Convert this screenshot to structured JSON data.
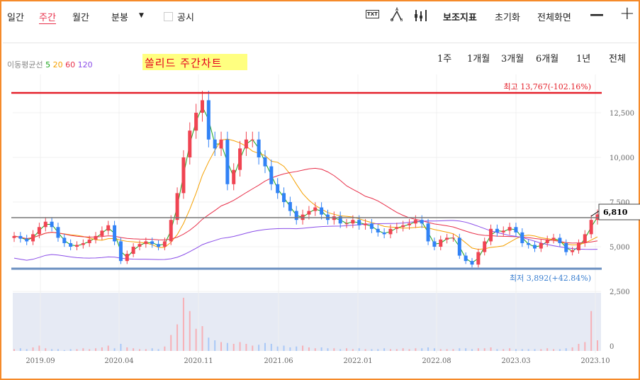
{
  "toolbar": {
    "daily": "일간",
    "weekly": "주간",
    "monthly": "월간",
    "minute": "분봉",
    "dropdown_icon": "▼",
    "disclosure": "공시",
    "disclosure_checked": false,
    "txt_icon": "TXT",
    "indicators": "보조지표",
    "reset": "초기화",
    "fullscreen": "전체화면",
    "zoom_out": "—",
    "zoom_in": "+"
  },
  "ma_legend": {
    "label": "이동평균선",
    "periods": [
      "5",
      "20",
      "60",
      "120"
    ],
    "colors": [
      "#1aa31a",
      "#f5a000",
      "#e8304a",
      "#8a4de8"
    ]
  },
  "chart_title": "쏠리드  주간차트",
  "ranges": [
    "1주",
    "1개월",
    "3개월",
    "6개월",
    "1년",
    "전체"
  ],
  "chart_data": {
    "type": "candlestick",
    "x_ticks": [
      "2019.09",
      "2020.04",
      "2020.11",
      "2021.06",
      "2022.01",
      "2022.08",
      "2023.03",
      "2023.10"
    ],
    "y_ticks": [
      12500,
      10000,
      7500,
      5000,
      2500
    ],
    "y_tick_labels": [
      "12,500",
      "10,000",
      "7,500",
      "5,000",
      "2,500"
    ],
    "volume_tick_label": "0",
    "high": {
      "value": 13767,
      "label": "최고 13,767(-102.16%)",
      "color": "#e4202a"
    },
    "low": {
      "value": 3892,
      "label": "최저 3,892(+42.84%)",
      "color": "#3a7fd0"
    },
    "current": {
      "value": 6810,
      "label": "6,810"
    },
    "up_color": "#f04452",
    "down_color": "#3182f6",
    "closes": [
      5600,
      5450,
      5300,
      5700,
      6100,
      6400,
      6100,
      5500,
      5200,
      5000,
      5100,
      5200,
      5400,
      5600,
      5900,
      6200,
      5300,
      4200,
      4600,
      5000,
      5150,
      5300,
      5150,
      5000,
      5300,
      6500,
      8000,
      10000,
      11500,
      12500,
      13200,
      11000,
      10500,
      11000,
      8500,
      9300,
      10500,
      11000,
      11000,
      10000,
      9500,
      8500,
      8000,
      7500,
      7000,
      6500,
      6800,
      7000,
      7200,
      6800,
      6500,
      6700,
      6300,
      6300,
      6500,
      6200,
      6300,
      6000,
      5800,
      5700,
      6000,
      6100,
      6200,
      6300,
      6500,
      6300,
      5300,
      5000,
      5400,
      5500,
      5500,
      4500,
      4200,
      4000,
      4700,
      5300,
      6000,
      5800,
      5900,
      6100,
      5800,
      5200,
      5100,
      4900,
      5200,
      5400,
      5500,
      5200,
      4700,
      4800,
      5200,
      5700,
      6500,
      6810
    ],
    "volumes": [
      2,
      3,
      2,
      4,
      6,
      3,
      2,
      2,
      1,
      2,
      2,
      3,
      2,
      3,
      4,
      6,
      3,
      8,
      4,
      3,
      2,
      2,
      3,
      2,
      5,
      18,
      30,
      60,
      45,
      25,
      28,
      15,
      12,
      10,
      9,
      8,
      10,
      8,
      6,
      7,
      9,
      8,
      5,
      6,
      4,
      5,
      6,
      4,
      3,
      4,
      3,
      3,
      2,
      3,
      2,
      3,
      2,
      2,
      2,
      3,
      2,
      2,
      3,
      2,
      3,
      3,
      4,
      3,
      2,
      2,
      2,
      3,
      3,
      2,
      3,
      3,
      4,
      2,
      2,
      3,
      2,
      2,
      2,
      2,
      2,
      3,
      2,
      2,
      3,
      4,
      8,
      10,
      45,
      12
    ]
  }
}
